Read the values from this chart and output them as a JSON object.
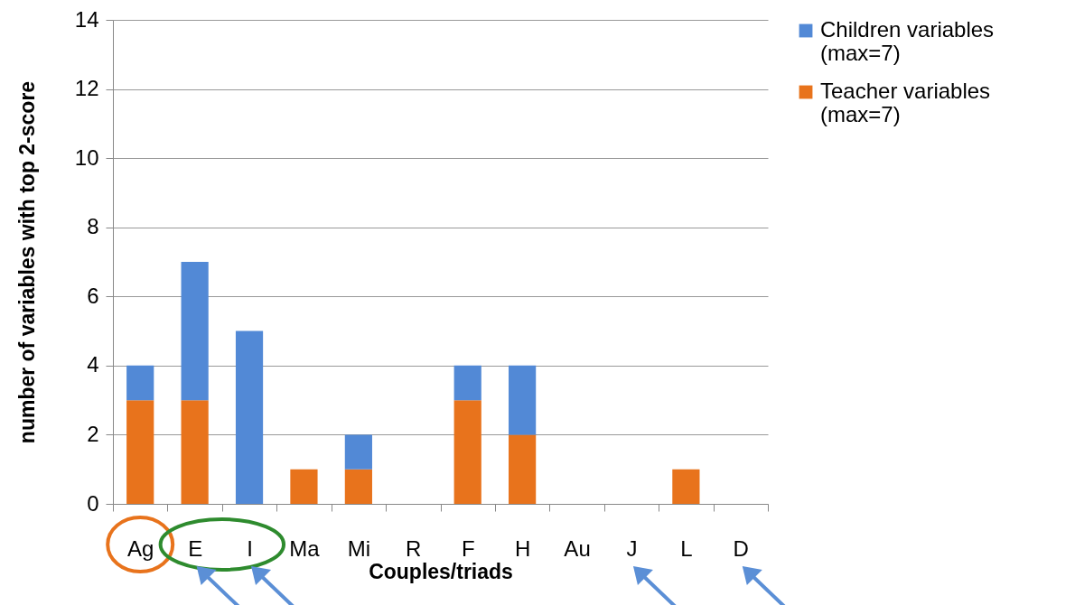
{
  "chart_data": {
    "type": "bar",
    "stacked": true,
    "xlabel": "Couples/triads",
    "ylabel": "number of variables with top 2-score",
    "categories": [
      "Ag",
      "E",
      "I",
      "Ma",
      "Mi",
      "R",
      "F",
      "H",
      "Au",
      "J",
      "L",
      "D"
    ],
    "series": [
      {
        "name": "Teacher variables (max=7)",
        "color": "#e8731c",
        "values": [
          3,
          3,
          0,
          1,
          1,
          0,
          3,
          2,
          0,
          0,
          1,
          0
        ]
      },
      {
        "name": "Children variables (max=7)",
        "color": "#5289d6",
        "values": [
          1,
          4,
          5,
          0,
          1,
          0,
          1,
          2,
          0,
          0,
          0,
          0
        ]
      }
    ],
    "ylim": [
      0,
      14
    ],
    "yticks": [
      0,
      2,
      4,
      6,
      8,
      10,
      12,
      14
    ],
    "grid": "y",
    "legend": "right"
  }
}
